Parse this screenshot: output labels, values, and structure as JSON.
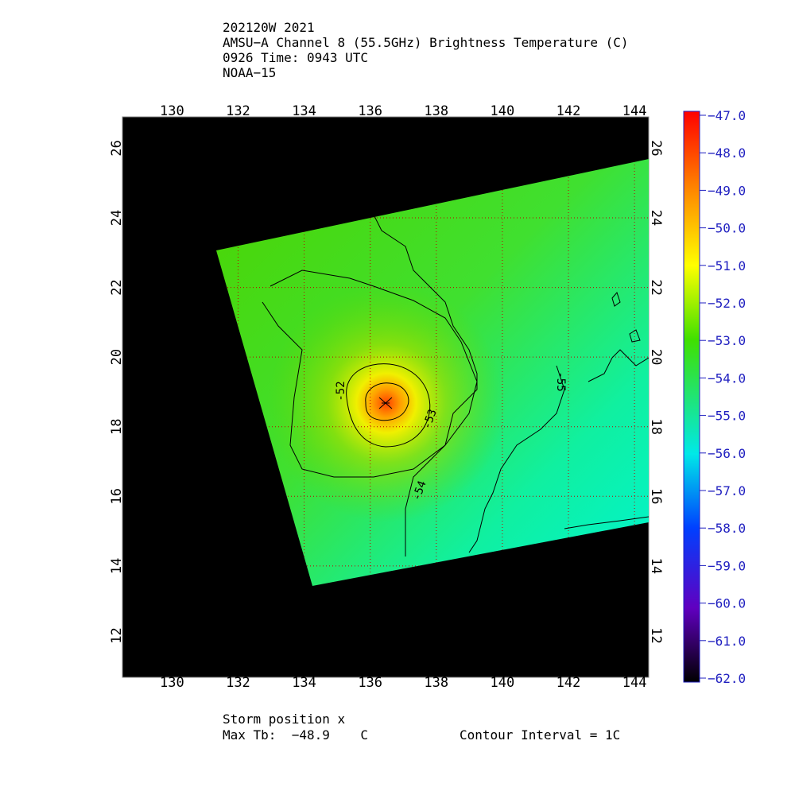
{
  "title_lines": [
    "202120W 2021",
    "AMSU−A Channel 8 (55.5GHz) Brightness Temperature (C)",
    "0926 Time: 0943 UTC",
    "NOAA−15"
  ],
  "map": {
    "xlim": [
      128.5,
      144.43
    ],
    "ylim": [
      10.8,
      26.9
    ],
    "xticks": [
      130,
      132,
      134,
      136,
      138,
      140,
      142,
      144
    ],
    "yticks": [
      12,
      14,
      16,
      18,
      20,
      22,
      24,
      26
    ],
    "contour_labels": [
      "-52",
      "-53",
      "-54",
      "-55"
    ]
  },
  "colorbar": {
    "lim": [
      -62,
      -47
    ],
    "ticks": [
      {
        "value": -47,
        "label": "−47.0"
      },
      {
        "value": -48,
        "label": "−48.0"
      },
      {
        "value": -49,
        "label": "−49.0"
      },
      {
        "value": -50,
        "label": "−50.0"
      },
      {
        "value": -51,
        "label": "−51.0"
      },
      {
        "value": -52,
        "label": "−52.0"
      },
      {
        "value": -53,
        "label": "−53.0"
      },
      {
        "value": -54,
        "label": "−54.0"
      },
      {
        "value": -55,
        "label": "−55.0"
      },
      {
        "value": -56,
        "label": "−56.0"
      },
      {
        "value": -57,
        "label": "−57.0"
      },
      {
        "value": -58,
        "label": "−58.0"
      },
      {
        "value": -59,
        "label": "−59.0"
      },
      {
        "value": -60,
        "label": "−60.0"
      },
      {
        "value": -61,
        "label": "−61.0"
      },
      {
        "value": -62,
        "label": "−62.0"
      }
    ]
  },
  "footer": {
    "storm": "Storm position x",
    "max_tb": "Max Tb:  −48.9    C",
    "interval": "Contour Interval = 1C"
  }
}
